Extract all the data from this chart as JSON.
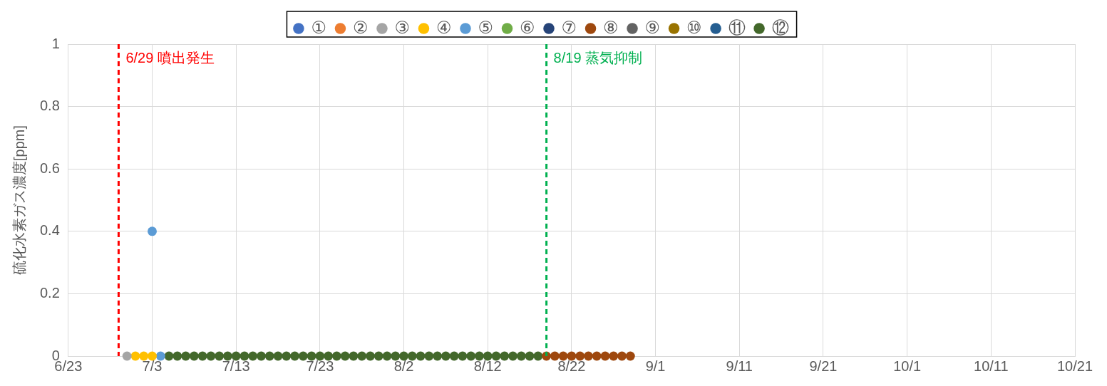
{
  "chart_data": {
    "type": "scatter",
    "ylabel": "硫化水素ガス濃度[ppm]",
    "xlim": [
      "--06-23",
      "--10-21"
    ],
    "xticks": [
      {
        "value": "--06-23",
        "label": "6/23"
      },
      {
        "value": "--07-03",
        "label": "7/3"
      },
      {
        "value": "--07-13",
        "label": "7/13"
      },
      {
        "value": "--07-23",
        "label": "7/23"
      },
      {
        "value": "--08-02",
        "label": "8/2"
      },
      {
        "value": "--08-12",
        "label": "8/12"
      },
      {
        "value": "--08-22",
        "label": "8/22"
      },
      {
        "value": "--09-01",
        "label": "9/1"
      },
      {
        "value": "--09-11",
        "label": "9/11"
      },
      {
        "value": "--09-21",
        "label": "9/21"
      },
      {
        "value": "--10-01",
        "label": "10/1"
      },
      {
        "value": "--10-11",
        "label": "10/11"
      },
      {
        "value": "--10-21",
        "label": "10/21"
      }
    ],
    "ylim": [
      0,
      1
    ],
    "yticks": [
      0,
      0.2,
      0.4,
      0.6,
      0.8,
      1
    ],
    "grid": true,
    "legend": "top",
    "marker": "circle",
    "ref_lines": [
      {
        "axis": "x",
        "value": "--06-29",
        "label": "6/29 噴出発生",
        "color": "#ff0000",
        "line_style": "dashed"
      },
      {
        "axis": "x",
        "value": "--08-19",
        "label": "8/19 蒸気抑制",
        "color": "#00b050",
        "line_style": "dashed"
      }
    ],
    "series": [
      {
        "name": "①",
        "color": "#4472c4"
      },
      {
        "name": "②",
        "color": "#ed7d31"
      },
      {
        "name": "③",
        "color": "#a5a5a5",
        "x": [
          "--06-30"
        ],
        "values": [
          0
        ]
      },
      {
        "name": "④",
        "color": "#ffc000",
        "x": [
          "--07-01",
          "--07-02",
          "--07-03"
        ],
        "values": [
          0,
          0,
          0
        ]
      },
      {
        "name": "⑤",
        "color": "#5b9bd5",
        "x": [
          "--07-03",
          "--07-04"
        ],
        "values": [
          0.4,
          0
        ]
      },
      {
        "name": "⑥",
        "color": "#70ad47"
      },
      {
        "name": "⑦",
        "color": "#264478"
      },
      {
        "name": "⑧",
        "color": "#9e480e",
        "x": [
          "--08-19",
          "--08-20",
          "--08-21",
          "--08-22",
          "--08-23",
          "--08-24",
          "--08-25",
          "--08-26",
          "--08-27",
          "--08-28",
          "--08-29"
        ],
        "values": [
          0,
          0,
          0,
          0,
          0,
          0,
          0,
          0,
          0,
          0,
          0
        ]
      },
      {
        "name": "⑨",
        "color": "#636363"
      },
      {
        "name": "⑩",
        "color": "#997300"
      },
      {
        "name": "⑪",
        "color": "#255e91"
      },
      {
        "name": "⑫",
        "color": "#43682b",
        "x": [
          "--07-05",
          "--07-06",
          "--07-07",
          "--07-08",
          "--07-09",
          "--07-10",
          "--07-11",
          "--07-12",
          "--07-13",
          "--07-14",
          "--07-15",
          "--07-16",
          "--07-17",
          "--07-18",
          "--07-19",
          "--07-20",
          "--07-21",
          "--07-22",
          "--07-23",
          "--07-24",
          "--07-25",
          "--07-26",
          "--07-27",
          "--07-28",
          "--07-29",
          "--07-30",
          "--07-31",
          "--08-01",
          "--08-02",
          "--08-03",
          "--08-04",
          "--08-05",
          "--08-06",
          "--08-07",
          "--08-08",
          "--08-09",
          "--08-10",
          "--08-11",
          "--08-12",
          "--08-13",
          "--08-14",
          "--08-15",
          "--08-16",
          "--08-17",
          "--08-18"
        ],
        "values": [
          0,
          0,
          0,
          0,
          0,
          0,
          0,
          0,
          0,
          0,
          0,
          0,
          0,
          0,
          0,
          0,
          0,
          0,
          0,
          0,
          0,
          0,
          0,
          0,
          0,
          0,
          0,
          0,
          0,
          0,
          0,
          0,
          0,
          0,
          0,
          0,
          0,
          0,
          0,
          0,
          0,
          0,
          0,
          0,
          0
        ]
      }
    ]
  }
}
